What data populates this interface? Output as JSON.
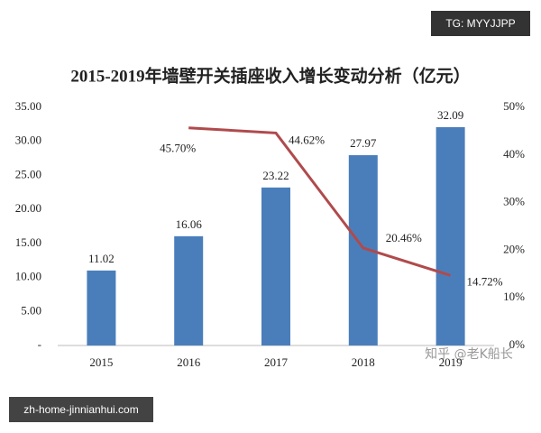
{
  "chart_data": {
    "type": "bar-line",
    "title": "2015-2019年墙壁开关插座收入增长变动分析（亿元）",
    "categories": [
      "2015",
      "2016",
      "2017",
      "2018",
      "2019"
    ],
    "series": [
      {
        "type": "bar",
        "color": "#4a7ebb",
        "values": [
          11.02,
          16.06,
          23.22,
          27.97,
          32.09
        ],
        "value_labels": [
          "11.02",
          "16.06",
          "23.22",
          "27.97",
          "32.09"
        ]
      },
      {
        "type": "line",
        "axis": "y2",
        "color": "#b04a4c",
        "values": [
          null,
          45.7,
          44.62,
          20.46,
          14.72
        ],
        "value_labels": [
          null,
          "45.70%",
          "44.62%",
          "20.46%",
          "14.72%"
        ]
      }
    ],
    "ylim": [
      0,
      35
    ],
    "yticks": [
      {
        "value": 0,
        "label": "-"
      },
      {
        "value": 5,
        "label": "5.00"
      },
      {
        "value": 10,
        "label": "10.00"
      },
      {
        "value": 15,
        "label": "15.00"
      },
      {
        "value": 20,
        "label": "20.00"
      },
      {
        "value": 25,
        "label": "25.00"
      },
      {
        "value": 30,
        "label": "30.00"
      },
      {
        "value": 35,
        "label": "35.00"
      }
    ],
    "y2lim": [
      0,
      50
    ],
    "y2ticks": [
      {
        "value": 0,
        "label": "0%"
      },
      {
        "value": 10,
        "label": "10%"
      },
      {
        "value": 20,
        "label": "20%"
      },
      {
        "value": 30,
        "label": "30%"
      },
      {
        "value": 40,
        "label": "40%"
      },
      {
        "value": 50,
        "label": "50%"
      }
    ]
  },
  "watermarks": [
    "TG: MYYJJPP",
    "知乎 @老K船长",
    "zh-home-jinnianhui.com"
  ]
}
